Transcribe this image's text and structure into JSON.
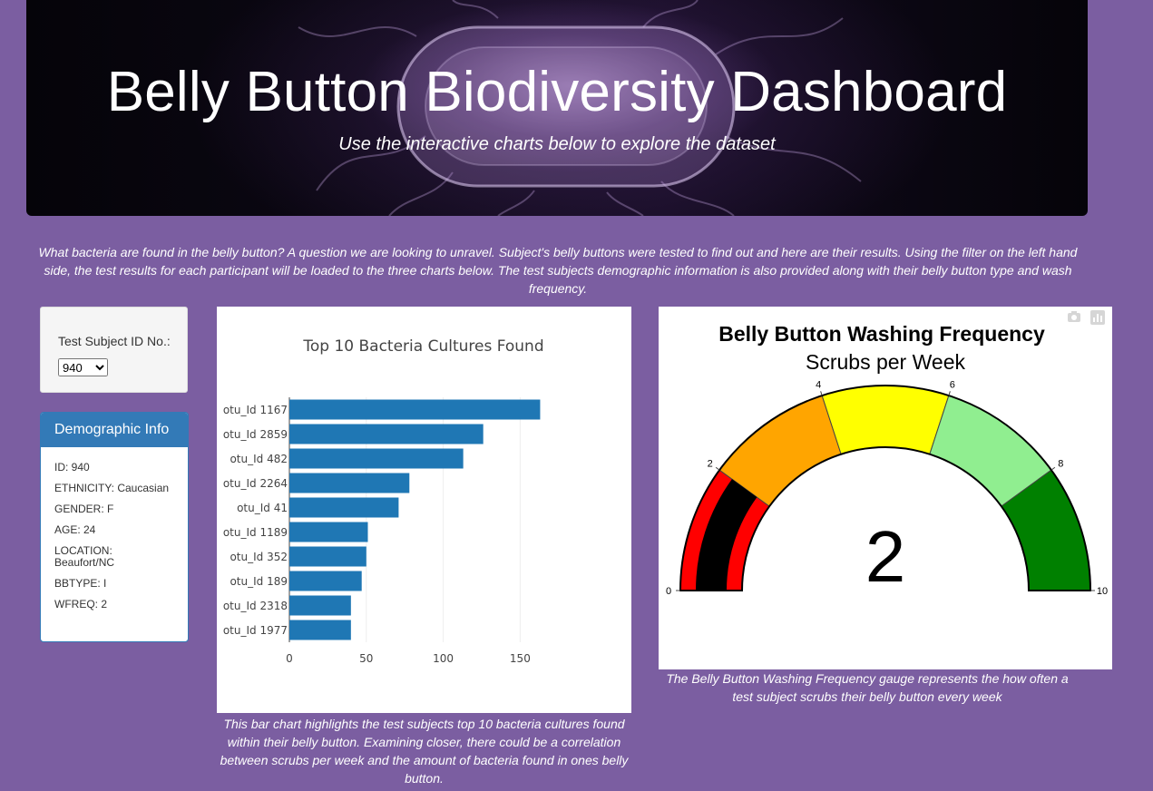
{
  "header": {
    "title": "Belly Button Biodiversity Dashboard",
    "subtitle": "Use the interactive charts below to explore the dataset"
  },
  "intro": "What bacteria are found in the belly button? A question we are looking to unravel. Subject's belly buttons were tested to find out and here are their results. Using the filter on the left hand side, the test results for each participant will be loaded to the three charts below. The test subjects demographic information is also provided along with their belly button type and wash frequency.",
  "selector": {
    "label": "Test Subject ID No.:",
    "selected": "940"
  },
  "demographics": {
    "heading": "Demographic Info",
    "rows": [
      "ID: 940",
      "ETHNICITY: Caucasian",
      "GENDER: F",
      "AGE: 24",
      "LOCATION: Beaufort/NC",
      "BBTYPE: I",
      "WFREQ: 2"
    ]
  },
  "bar_caption": "This bar chart highlights the test subjects top 10 bacteria cultures found within their belly button. Examining closer, there could be a correlation between scrubs per week and the amount of bacteria found in ones belly button.",
  "gauge_caption": "The Belly Button Washing Frequency gauge represents the how often a test subject scrubs their belly button every week",
  "icons": {
    "camera": "camera-icon",
    "plotly": "plotly-logo-icon"
  },
  "chart_data": [
    {
      "type": "bar",
      "orientation": "horizontal",
      "title": "Top 10 Bacteria Cultures Found",
      "categories": [
        "otu_Id 1167",
        "otu_Id 2859",
        "otu_Id 482",
        "otu_Id 2264",
        "otu_Id 41",
        "otu_Id 1189",
        "otu_Id 352",
        "otu_Id 189",
        "otu_Id 2318",
        "otu_Id 1977"
      ],
      "values": [
        163,
        126,
        113,
        78,
        71,
        51,
        50,
        47,
        40,
        40
      ],
      "xticks": [
        0,
        50,
        100,
        150
      ],
      "xlim": [
        0,
        171
      ],
      "bar_color": "#1f77b4"
    },
    {
      "type": "gauge",
      "title": "Belly Button Washing Frequency",
      "subtitle": "Scrubs per Week",
      "value": 2,
      "range": [
        0,
        10
      ],
      "ticks": [
        0,
        2,
        4,
        6,
        8,
        10
      ],
      "bands": [
        {
          "range": [
            0,
            2
          ],
          "color": "#ff0000"
        },
        {
          "range": [
            2,
            4
          ],
          "color": "#ffa500"
        },
        {
          "range": [
            4,
            6
          ],
          "color": "#ffff00"
        },
        {
          "range": [
            6,
            8
          ],
          "color": "#90ee90"
        },
        {
          "range": [
            8,
            10
          ],
          "color": "#008000"
        }
      ],
      "bar_color": "#000000"
    }
  ]
}
